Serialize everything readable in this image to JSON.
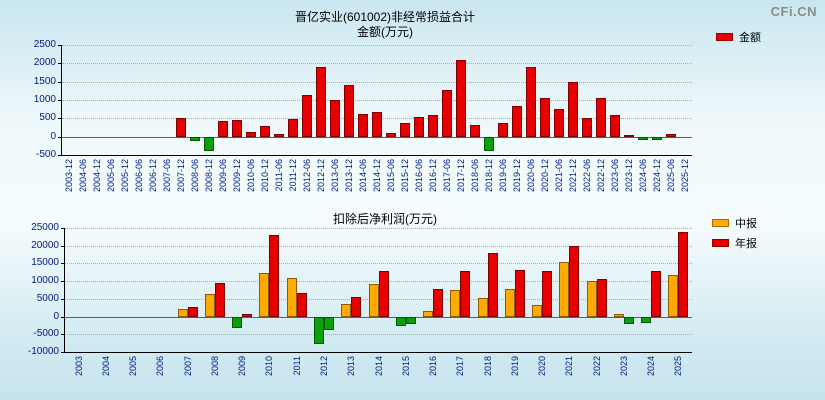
{
  "logo": {
    "text": "CFi.CN"
  },
  "chart_data": [
    {
      "type": "bar",
      "title": "晋亿实业(601002)非经常损益合计",
      "subtitle": "金额(万元)",
      "categories": [
        "2003-12",
        "2004-06",
        "2004-12",
        "2005-06",
        "2005-12",
        "2006-06",
        "2006-12",
        "2007-06",
        "2007-12",
        "2008-06",
        "2008-12",
        "2009-06",
        "2009-12",
        "2010-06",
        "2010-12",
        "2011-06",
        "2011-12",
        "2012-06",
        "2012-12",
        "2013-06",
        "2013-12",
        "2014-06",
        "2014-12",
        "2015-06",
        "2015-12",
        "2016-06",
        "2016-12",
        "2017-06",
        "2017-12",
        "2018-06",
        "2018-12",
        "2019-06",
        "2019-12",
        "2020-06",
        "2020-12",
        "2021-06",
        "2021-12",
        "2022-06",
        "2022-12",
        "2023-06",
        "2023-12",
        "2024-06",
        "2024-12",
        "2025-06",
        "2025-12"
      ],
      "series": [
        {
          "name": "金额",
          "color": "#e80000",
          "values": [
            0,
            0,
            0,
            0,
            0,
            0,
            0,
            0,
            500,
            -120,
            -380,
            430,
            450,
            120,
            280,
            60,
            480,
            1150,
            1900,
            1000,
            1400,
            620,
            680,
            90,
            380,
            550,
            600,
            1280,
            2100,
            320,
            -400,
            380,
            850,
            1900,
            1050,
            750,
            1500,
            500,
            1050,
            600,
            50,
            -100,
            -80,
            60,
            0
          ]
        }
      ],
      "negative_color": "#0aa00a",
      "ylim": [
        -500,
        2500
      ],
      "yticks": [
        2500,
        2000,
        1500,
        1000,
        500,
        0,
        -500
      ],
      "legend": [
        {
          "label": "金额",
          "color": "#e80000"
        }
      ],
      "legend_position": "top-right",
      "grid": true
    },
    {
      "type": "bar",
      "title": "扣除后净利润(万元)",
      "categories": [
        "2003",
        "2004",
        "2005",
        "2006",
        "2007",
        "2008",
        "2009",
        "2010",
        "2011",
        "2012",
        "2013",
        "2014",
        "2015",
        "2016",
        "2017",
        "2018",
        "2019",
        "2020",
        "2021",
        "2022",
        "2023",
        "2024",
        "2025"
      ],
      "series": [
        {
          "name": "中报",
          "color": "#ffaa00",
          "values": [
            0,
            0,
            0,
            0,
            2000,
            6300,
            -3200,
            12200,
            10800,
            -7800,
            3600,
            9200,
            -2800,
            1500,
            7500,
            5200,
            7800,
            3200,
            15500,
            10000,
            800,
            -1800,
            11800
          ]
        },
        {
          "name": "年报",
          "color": "#e80000",
          "values": [
            0,
            0,
            0,
            0,
            2800,
            9500,
            700,
            23000,
            6700,
            -3800,
            5600,
            12800,
            -2200,
            7800,
            12800,
            18000,
            13200,
            12800,
            20000,
            10500,
            -2000,
            13000,
            23800
          ]
        }
      ],
      "negative_color": "#0aa00a",
      "ylim": [
        -10000,
        25000
      ],
      "yticks": [
        25000,
        20000,
        15000,
        10000,
        5000,
        0,
        -5000,
        -10000
      ],
      "legend": [
        {
          "label": "中报",
          "color": "#ffaa00"
        },
        {
          "label": "年报",
          "color": "#e80000"
        }
      ],
      "legend_position": "right",
      "grid": true
    }
  ]
}
